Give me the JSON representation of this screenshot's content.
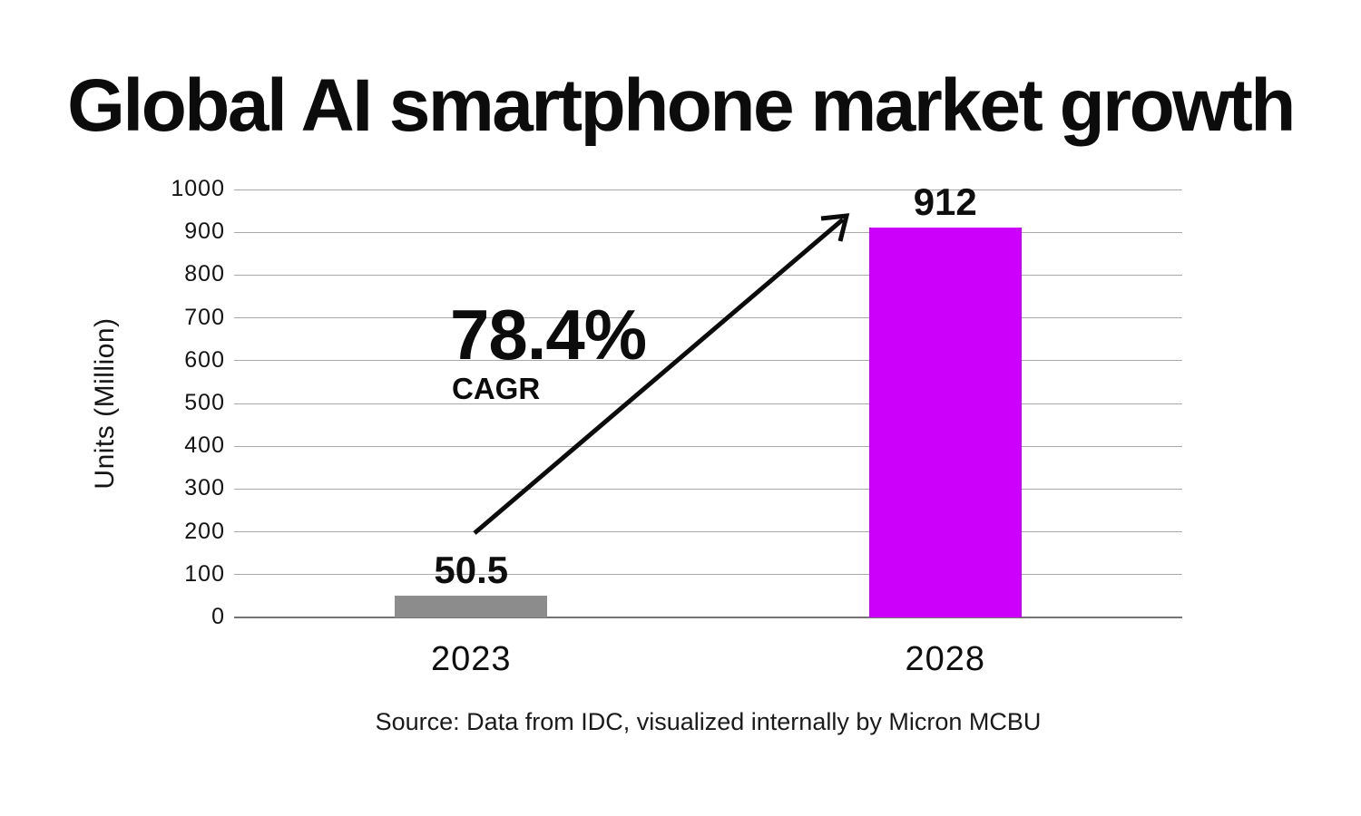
{
  "chart_data": {
    "type": "bar",
    "title": "Global AI smartphone market growth",
    "categories": [
      "2023",
      "2028"
    ],
    "values": [
      50.5,
      912
    ],
    "bar_labels": [
      "50.5",
      "912"
    ],
    "bar_colors": [
      "#8c8c8c",
      "#cc00fa"
    ],
    "xlabel": "",
    "ylabel": "Units (Million)",
    "ylim": [
      0,
      1000
    ],
    "yticks": [
      0,
      100,
      200,
      300,
      400,
      500,
      600,
      700,
      800,
      900,
      1000
    ],
    "grid": "horizontal",
    "legend": "none",
    "annotation": {
      "value": "78.4%",
      "label": "CAGR",
      "arrow": "diagonal arrow from above 2023 bar to top of 2028 bar"
    },
    "source": "Source: Data from IDC, visualized internally by Micron MCBU"
  },
  "colors": {
    "bar_2023": "#8c8c8c",
    "bar_2028": "#cc00fa",
    "gridline": "#a9a9a9",
    "axis_line": "#747474",
    "text": "#0c0c0c",
    "background": "#ffffff"
  }
}
